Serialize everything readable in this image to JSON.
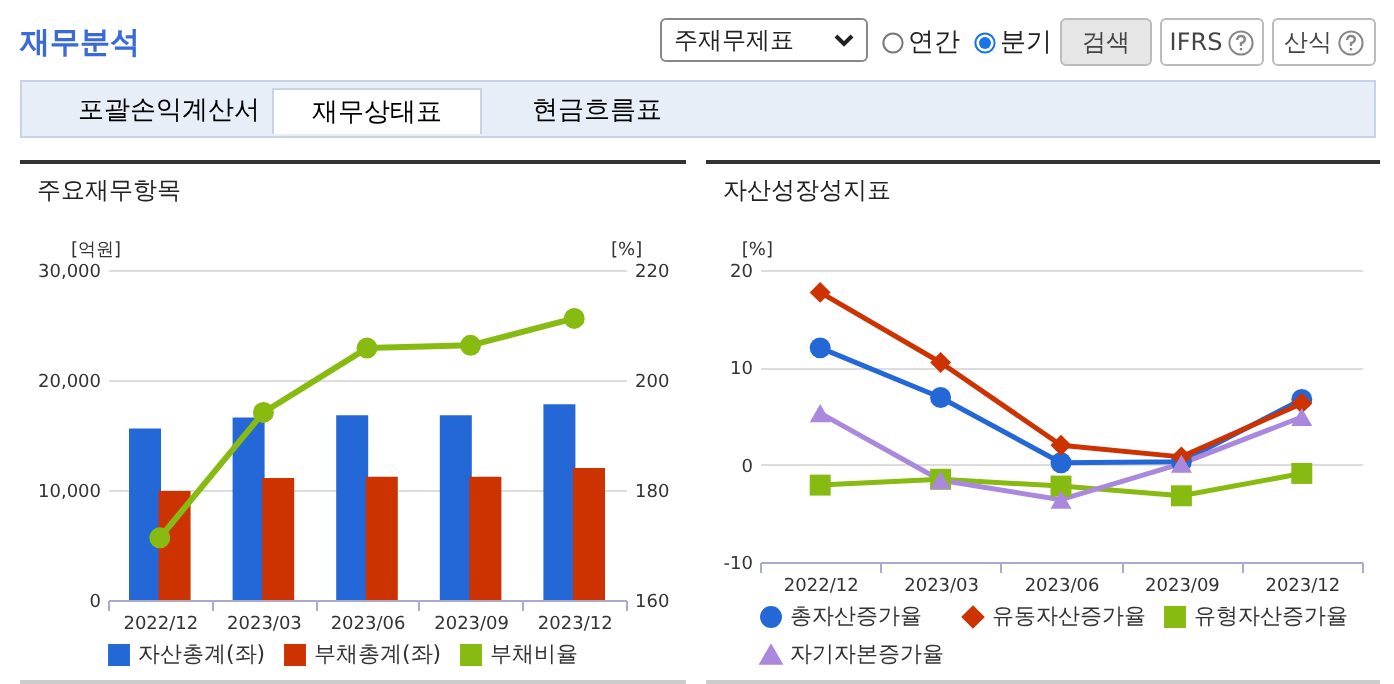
{
  "chart_data": [
    {
      "type": "other",
      "title": "재무분석",
      "annotations": [
        "주재무제표",
        "연간",
        "분기",
        "검색",
        "IFRS",
        "산식",
        "포괄손익계산서",
        "재무상태표",
        "현금흐름표"
      ]
    },
    {
      "type": "bar",
      "title": "주요재무항목",
      "ylabel": "[억원]",
      "y2label": "[%]",
      "categories": [
        "2022/12",
        "2023/03",
        "2023/06",
        "2023/09",
        "2023/12"
      ],
      "series": [
        {
          "name": "자산총계(좌)",
          "color": "#2468d8",
          "values": [
            15600,
            16600,
            16800,
            16800,
            17800
          ]
        },
        {
          "name": "부채총계(좌)",
          "color": "#cc3300",
          "values": [
            9900,
            11100,
            11200,
            11200,
            12000
          ]
        },
        {
          "name": "부채비율",
          "type": "line",
          "axis": "y2",
          "marker": "circle",
          "color": "#88bb11",
          "values": [
            171.3,
            194.1,
            205.8,
            206.3,
            211.2
          ]
        }
      ],
      "ylim": [
        0,
        30000
      ],
      "yticks": [
        0,
        {
          "value": 10000,
          "label": "10,000"
        },
        {
          "value": 20000,
          "label": "20,000"
        },
        {
          "value": 30000,
          "label": "30,000"
        }
      ],
      "y2lim": [
        160,
        220
      ],
      "y2ticks": [
        160,
        180,
        200,
        220
      ],
      "grid": "y",
      "legend": "bottom"
    },
    {
      "type": "line",
      "title": "자산성장성지표",
      "ylabel": "[%]",
      "categories": [
        "2022/12",
        "2023/03",
        "2023/06",
        "2023/09",
        "2023/12"
      ],
      "series": [
        {
          "name": "총자산증가율",
          "color": "#2468d8",
          "marker": "circle",
          "values": [
            12.0,
            6.9,
            0.2,
            0.3,
            6.7
          ]
        },
        {
          "name": "유동자산증가율",
          "color": "#cc3300",
          "marker": "diamond",
          "values": [
            17.7,
            10.5,
            2.0,
            0.8,
            6.3
          ]
        },
        {
          "name": "유형자산증가율",
          "color": "#88bb11",
          "marker": "square",
          "values": [
            -2.1,
            -1.5,
            -2.2,
            -3.2,
            -0.9
          ]
        },
        {
          "name": "자기자본증가율",
          "color": "#aa88dd",
          "marker": "triangle",
          "values": [
            5.3,
            -1.6,
            -3.6,
            0.1,
            4.9
          ]
        }
      ],
      "ylim": [
        -10,
        20
      ],
      "yticks": [
        -10,
        0,
        10,
        20
      ],
      "grid": "y",
      "legend": "bottom"
    }
  ]
}
